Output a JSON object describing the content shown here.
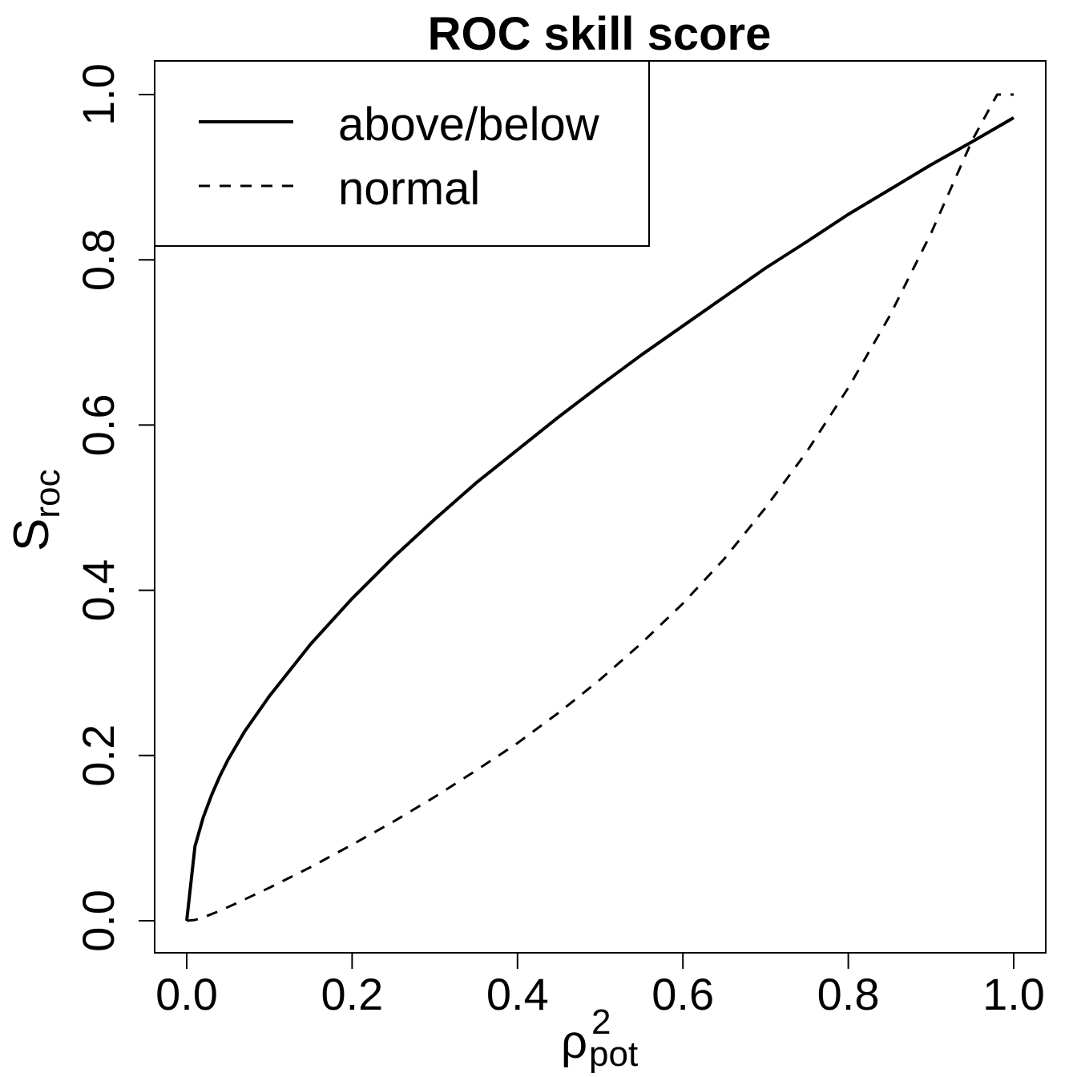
{
  "chart_data": {
    "type": "line",
    "title": "ROC skill score",
    "xlabel": {
      "main": "ρ",
      "superscript": "2",
      "subscript": "pot"
    },
    "ylabel": {
      "main": "S",
      "subscript": "roc"
    },
    "xlim": [
      0,
      1
    ],
    "ylim": [
      0,
      1
    ],
    "xticks": [
      "0.0",
      "0.2",
      "0.4",
      "0.6",
      "0.8",
      "1.0"
    ],
    "yticks": [
      "0.0",
      "0.2",
      "0.4",
      "0.6",
      "0.8",
      "1.0"
    ],
    "grid": false,
    "legend_position": "top-left",
    "series": [
      {
        "name": "above/below",
        "line_style": "solid",
        "color": "#000000",
        "x": [
          0,
          0.01,
          0.02,
          0.03,
          0.04,
          0.05,
          0.07,
          0.1,
          0.15,
          0.2,
          0.25,
          0.3,
          0.35,
          0.4,
          0.45,
          0.5,
          0.55,
          0.6,
          0.65,
          0.7,
          0.75,
          0.8,
          0.85,
          0.9,
          0.95,
          1.0
        ],
        "y": [
          0,
          0.09,
          0.125,
          0.152,
          0.175,
          0.195,
          0.229,
          0.272,
          0.335,
          0.39,
          0.44,
          0.486,
          0.53,
          0.57,
          0.61,
          0.648,
          0.685,
          0.72,
          0.755,
          0.79,
          0.822,
          0.855,
          0.885,
          0.915,
          0.943,
          0.972
        ]
      },
      {
        "name": "normal",
        "line_style": "dashed",
        "color": "#000000",
        "x": [
          0,
          0.01,
          0.02,
          0.04,
          0.06,
          0.1,
          0.15,
          0.2,
          0.25,
          0.3,
          0.35,
          0.4,
          0.45,
          0.5,
          0.55,
          0.6,
          0.65,
          0.7,
          0.75,
          0.8,
          0.85,
          0.9,
          0.95,
          0.98,
          1.0
        ],
        "y": [
          0,
          0.001,
          0.004,
          0.012,
          0.021,
          0.04,
          0.065,
          0.092,
          0.12,
          0.15,
          0.182,
          0.215,
          0.252,
          0.292,
          0.336,
          0.384,
          0.438,
          0.5,
          0.568,
          0.645,
          0.732,
          0.832,
          0.945,
          1.0,
          1.0
        ]
      }
    ]
  }
}
